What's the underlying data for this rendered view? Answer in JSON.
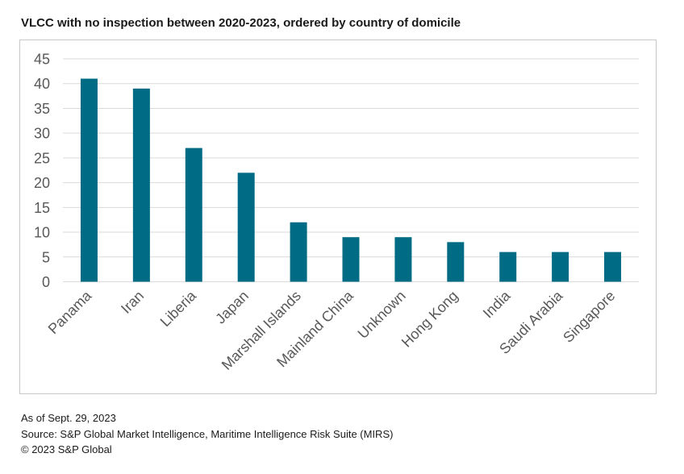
{
  "title": "VLCC with no inspection between 2020-2023, ordered by country of domicile",
  "footer": {
    "as_of": "As of Sept. 29, 2023",
    "source": "Source: S&P Global Market Intelligence, Maritime Intelligence Risk Suite (MIRS)",
    "copyright": "© 2023 S&P Global"
  },
  "colors": {
    "bar": "#006b84",
    "grid": "#d9d9d9",
    "axis_text": "#595959"
  },
  "chart_data": {
    "type": "bar",
    "categories": [
      "Panama",
      "Iran",
      "Liberia",
      "Japan",
      "Marshall Islands",
      "Mainland China",
      "Unknown",
      "Hong Kong",
      "India",
      "Saudi Arabia",
      "Singapore"
    ],
    "values": [
      41,
      39,
      27,
      22,
      12,
      9,
      9,
      8,
      6,
      6,
      6
    ],
    "ylim": [
      0,
      45
    ],
    "yticks": [
      0,
      5,
      10,
      15,
      20,
      25,
      30,
      35,
      40,
      45
    ],
    "grid": true,
    "legend": "none"
  }
}
